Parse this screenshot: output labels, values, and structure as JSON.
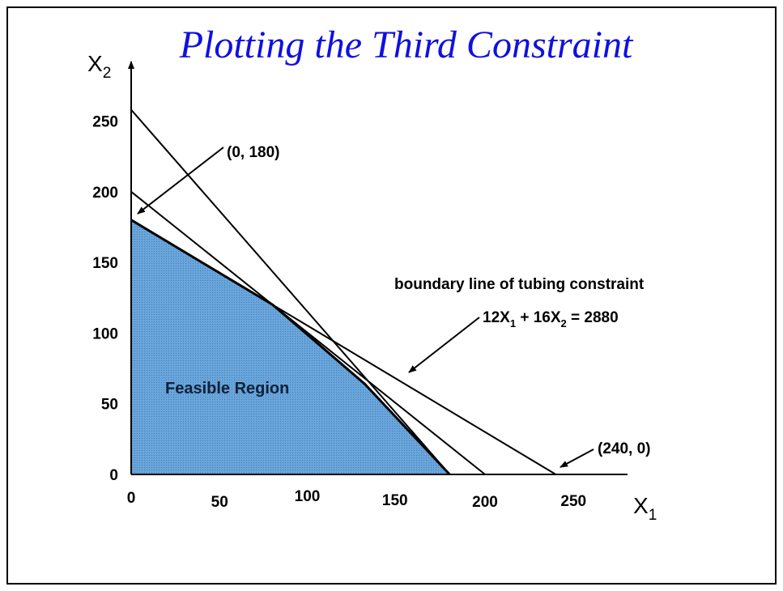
{
  "chart_data": {
    "type": "area",
    "title": "Plotting the Third Constraint",
    "xlabel": {
      "main": "X",
      "sub": "1"
    },
    "ylabel": {
      "main": "X",
      "sub": "2"
    },
    "xlim": [
      0,
      250
    ],
    "ylim": [
      0,
      250
    ],
    "x_ticks": [
      0,
      50,
      100,
      150,
      200,
      250
    ],
    "y_ticks": [
      0,
      50,
      100,
      150,
      200,
      250
    ],
    "grid": false,
    "lines": [
      {
        "points": [
          [
            0,
            180
          ],
          [
            240,
            0
          ]
        ]
      },
      {
        "points": [
          [
            0,
            200
          ],
          [
            200,
            0
          ]
        ]
      },
      {
        "points": [
          [
            0,
            258
          ],
          [
            180,
            0
          ]
        ]
      }
    ],
    "feasible_region": {
      "label": "Feasible Region",
      "color": "#5b9bd5",
      "points": [
        [
          0,
          0
        ],
        [
          0,
          180
        ],
        [
          80,
          120
        ],
        [
          132,
          64
        ],
        [
          180,
          0
        ]
      ]
    },
    "annotations": [
      {
        "text": "(0, 180)",
        "point": [
          0,
          180
        ]
      },
      {
        "text": "(240, 0)",
        "point": [
          240,
          0
        ]
      },
      {
        "text": "boundary line of tubing constraint",
        "point": [
          195,
          70
        ]
      }
    ],
    "equation": {
      "parts": [
        {
          "text": "12X"
        },
        {
          "sub": "1"
        },
        {
          "text": " + 16X"
        },
        {
          "sub": "2"
        },
        {
          "text": " = 2880"
        }
      ]
    }
  },
  "colors": {
    "title": "#1010e0",
    "region": "#5b9bd5",
    "line": "#000000"
  }
}
